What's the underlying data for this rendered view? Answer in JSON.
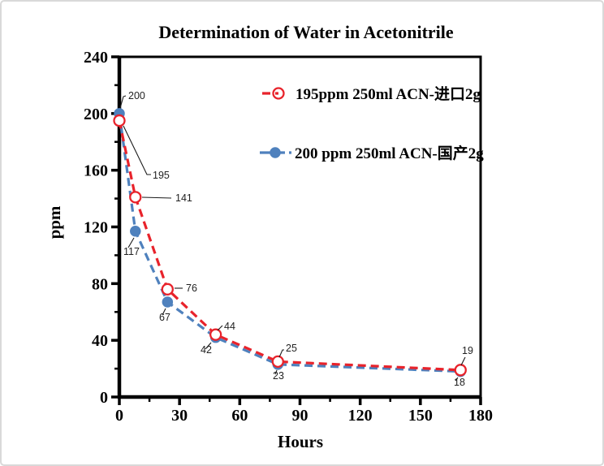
{
  "window": {
    "background": "#ffffff",
    "border_color": "#d9d9d9"
  },
  "chart_data": {
    "type": "line",
    "title": "Determination of Water in Acetonitrile",
    "xlabel": "Hours",
    "ylabel": "ppm",
    "xlim": [
      0,
      180
    ],
    "ylim": [
      0,
      240
    ],
    "x_major_ticks": [
      0,
      30,
      60,
      90,
      120,
      150,
      180
    ],
    "x_minor_step": 15,
    "y_major_ticks": [
      0,
      40,
      80,
      120,
      160,
      200,
      240
    ],
    "y_minor_step": 20,
    "grid": false,
    "legend_position": "inside-top-right",
    "axis_color": "#000000",
    "series": [
      {
        "name": "195ppm  250ml ACN-进口2g",
        "color": "#e8232b",
        "line_style": "dashed",
        "marker": "open-circle",
        "x": [
          0,
          8,
          24,
          48,
          79,
          170
        ],
        "values": [
          195,
          141,
          76,
          44,
          25,
          19
        ],
        "point_labels": [
          "195",
          "141",
          "76",
          "44",
          "25",
          "19"
        ]
      },
      {
        "name": "200 ppm 250ml ACN-国产2g",
        "color": "#4f81bd",
        "line_style": "dashed",
        "marker": "filled-circle",
        "x": [
          0,
          8,
          24,
          48,
          79,
          170
        ],
        "values": [
          200,
          117,
          67,
          42,
          23,
          18
        ],
        "point_labels": [
          "200",
          "117",
          "67",
          "42",
          "23",
          "18"
        ]
      }
    ]
  }
}
